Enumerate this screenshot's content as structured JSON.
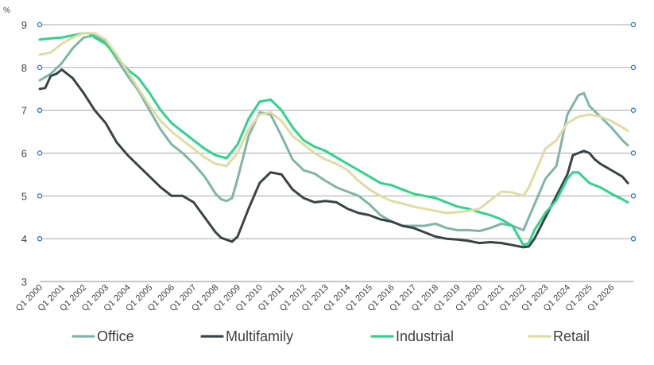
{
  "chart_data": {
    "type": "line",
    "ylabel": "%",
    "ylim": [
      3,
      9
    ],
    "yticks": [
      "3",
      "4",
      "5",
      "6",
      "7",
      "8",
      "9"
    ],
    "xlim": [
      2000,
      2027
    ],
    "xtick_labels": [
      "Q1 2000",
      "Q1 2001",
      "Q1 2002",
      "Q1 2003",
      "Q1 2004",
      "Q1 2005",
      "Q1 2006",
      "Q1 2007",
      "Q1 2008",
      "Q1 2009",
      "Q1 2010",
      "Q1 2011",
      "Q1 2012",
      "Q1 2013",
      "Q1 2014",
      "Q1 2015",
      "Q1 2016",
      "Q1 2017",
      "Q1 2018",
      "Q1 2019",
      "Q1 2020",
      "Q1 2021",
      "Q1 2022",
      "Q1 2023",
      "Q1 2024",
      "Q1 2025",
      "Q1 2026"
    ],
    "grid": true,
    "legend_position": "bottom",
    "series": [
      {
        "name": "Office",
        "color": "#7fb5a8",
        "points": [
          [
            2000,
            7.7
          ],
          [
            2000.5,
            7.85
          ],
          [
            2001,
            8.1
          ],
          [
            2001.5,
            8.45
          ],
          [
            2002,
            8.7
          ],
          [
            2002.5,
            8.75
          ],
          [
            2003,
            8.6
          ],
          [
            2003.5,
            8.2
          ],
          [
            2004,
            7.8
          ],
          [
            2004.5,
            7.45
          ],
          [
            2005,
            7.0
          ],
          [
            2005.5,
            6.55
          ],
          [
            2006,
            6.2
          ],
          [
            2006.5,
            6.0
          ],
          [
            2007,
            5.75
          ],
          [
            2007.5,
            5.45
          ],
          [
            2008,
            5.05
          ],
          [
            2008.25,
            4.92
          ],
          [
            2008.5,
            4.88
          ],
          [
            2008.75,
            4.95
          ],
          [
            2009,
            5.4
          ],
          [
            2009.5,
            6.4
          ],
          [
            2010,
            6.95
          ],
          [
            2010.5,
            6.9
          ],
          [
            2011,
            6.4
          ],
          [
            2011.5,
            5.85
          ],
          [
            2012,
            5.6
          ],
          [
            2012.5,
            5.52
          ],
          [
            2013,
            5.35
          ],
          [
            2013.5,
            5.2
          ],
          [
            2014,
            5.1
          ],
          [
            2014.5,
            5.0
          ],
          [
            2015,
            4.8
          ],
          [
            2015.5,
            4.55
          ],
          [
            2016,
            4.4
          ],
          [
            2016.5,
            4.3
          ],
          [
            2017,
            4.3
          ],
          [
            2017.5,
            4.3
          ],
          [
            2018,
            4.35
          ],
          [
            2018.5,
            4.25
          ],
          [
            2019,
            4.2
          ],
          [
            2019.5,
            4.2
          ],
          [
            2020,
            4.18
          ],
          [
            2020.5,
            4.25
          ],
          [
            2021,
            4.35
          ],
          [
            2021.5,
            4.3
          ],
          [
            2022,
            4.2
          ],
          [
            2022.5,
            4.8
          ],
          [
            2023,
            5.4
          ],
          [
            2023.5,
            5.7
          ],
          [
            2024,
            6.9
          ],
          [
            2024.5,
            7.35
          ],
          [
            2024.75,
            7.4
          ],
          [
            2025,
            7.1
          ],
          [
            2025.5,
            6.85
          ],
          [
            2026,
            6.6
          ],
          [
            2026.5,
            6.3
          ],
          [
            2026.75,
            6.18
          ]
        ]
      },
      {
        "name": "Multifamily",
        "color": "#3a4346",
        "points": [
          [
            2000,
            7.5
          ],
          [
            2000.25,
            7.52
          ],
          [
            2000.5,
            7.8
          ],
          [
            2000.75,
            7.85
          ],
          [
            2001,
            7.95
          ],
          [
            2001.5,
            7.75
          ],
          [
            2002,
            7.4
          ],
          [
            2002.5,
            7.0
          ],
          [
            2003,
            6.7
          ],
          [
            2003.5,
            6.25
          ],
          [
            2004,
            5.95
          ],
          [
            2004.5,
            5.7
          ],
          [
            2005,
            5.45
          ],
          [
            2005.5,
            5.2
          ],
          [
            2006,
            5.0
          ],
          [
            2006.5,
            5.0
          ],
          [
            2007,
            4.85
          ],
          [
            2007.5,
            4.5
          ],
          [
            2008,
            4.15
          ],
          [
            2008.25,
            4.02
          ],
          [
            2008.75,
            3.93
          ],
          [
            2009,
            4.05
          ],
          [
            2009.5,
            4.7
          ],
          [
            2010,
            5.3
          ],
          [
            2010.5,
            5.55
          ],
          [
            2011,
            5.5
          ],
          [
            2011.5,
            5.15
          ],
          [
            2012,
            4.95
          ],
          [
            2012.5,
            4.85
          ],
          [
            2013,
            4.88
          ],
          [
            2013.5,
            4.85
          ],
          [
            2014,
            4.7
          ],
          [
            2014.5,
            4.6
          ],
          [
            2015,
            4.55
          ],
          [
            2015.5,
            4.45
          ],
          [
            2016,
            4.4
          ],
          [
            2016.5,
            4.3
          ],
          [
            2017,
            4.25
          ],
          [
            2017.5,
            4.15
          ],
          [
            2018,
            4.05
          ],
          [
            2018.5,
            4.0
          ],
          [
            2019,
            3.98
          ],
          [
            2019.5,
            3.95
          ],
          [
            2020,
            3.9
          ],
          [
            2020.5,
            3.92
          ],
          [
            2021,
            3.9
          ],
          [
            2021.5,
            3.85
          ],
          [
            2022,
            3.8
          ],
          [
            2022.25,
            3.82
          ],
          [
            2022.5,
            4.0
          ],
          [
            2023,
            4.5
          ],
          [
            2023.5,
            5.0
          ],
          [
            2024,
            5.5
          ],
          [
            2024.25,
            5.95
          ],
          [
            2024.5,
            6.0
          ],
          [
            2024.75,
            6.05
          ],
          [
            2025,
            6.0
          ],
          [
            2025.25,
            5.85
          ],
          [
            2025.5,
            5.75
          ],
          [
            2026,
            5.6
          ],
          [
            2026.5,
            5.45
          ],
          [
            2026.75,
            5.3
          ]
        ]
      },
      {
        "name": "Industrial",
        "color": "#2ed48a",
        "points": [
          [
            2000,
            8.65
          ],
          [
            2000.5,
            8.68
          ],
          [
            2001,
            8.7
          ],
          [
            2001.5,
            8.75
          ],
          [
            2002,
            8.8
          ],
          [
            2002.25,
            8.8
          ],
          [
            2002.5,
            8.7
          ],
          [
            2003,
            8.55
          ],
          [
            2003.5,
            8.25
          ],
          [
            2004,
            7.95
          ],
          [
            2004.5,
            7.75
          ],
          [
            2005,
            7.4
          ],
          [
            2005.5,
            7.0
          ],
          [
            2006,
            6.7
          ],
          [
            2006.5,
            6.5
          ],
          [
            2007,
            6.3
          ],
          [
            2007.5,
            6.1
          ],
          [
            2008,
            5.95
          ],
          [
            2008.5,
            5.88
          ],
          [
            2009,
            6.2
          ],
          [
            2009.5,
            6.8
          ],
          [
            2010,
            7.2
          ],
          [
            2010.5,
            7.25
          ],
          [
            2011,
            7.0
          ],
          [
            2011.5,
            6.6
          ],
          [
            2012,
            6.3
          ],
          [
            2012.5,
            6.15
          ],
          [
            2013,
            6.05
          ],
          [
            2013.5,
            5.9
          ],
          [
            2014,
            5.75
          ],
          [
            2014.5,
            5.6
          ],
          [
            2015,
            5.45
          ],
          [
            2015.5,
            5.3
          ],
          [
            2016,
            5.25
          ],
          [
            2016.5,
            5.15
          ],
          [
            2017,
            5.05
          ],
          [
            2017.5,
            5.0
          ],
          [
            2018,
            4.95
          ],
          [
            2018.5,
            4.85
          ],
          [
            2019,
            4.75
          ],
          [
            2019.5,
            4.7
          ],
          [
            2020,
            4.62
          ],
          [
            2020.5,
            4.55
          ],
          [
            2021,
            4.45
          ],
          [
            2021.5,
            4.3
          ],
          [
            2022,
            3.85
          ],
          [
            2022.25,
            3.9
          ],
          [
            2022.5,
            4.2
          ],
          [
            2023,
            4.6
          ],
          [
            2023.5,
            4.9
          ],
          [
            2024,
            5.4
          ],
          [
            2024.25,
            5.55
          ],
          [
            2024.5,
            5.55
          ],
          [
            2025,
            5.3
          ],
          [
            2025.5,
            5.2
          ],
          [
            2026,
            5.05
          ],
          [
            2026.5,
            4.92
          ],
          [
            2026.75,
            4.85
          ]
        ]
      },
      {
        "name": "Retail",
        "color": "#e0dca4",
        "points": [
          [
            2000,
            8.3
          ],
          [
            2000.5,
            8.35
          ],
          [
            2001,
            8.55
          ],
          [
            2001.5,
            8.7
          ],
          [
            2002,
            8.8
          ],
          [
            2002.5,
            8.8
          ],
          [
            2003,
            8.65
          ],
          [
            2003.5,
            8.3
          ],
          [
            2004,
            7.9
          ],
          [
            2004.5,
            7.5
          ],
          [
            2005,
            7.1
          ],
          [
            2005.5,
            6.75
          ],
          [
            2006,
            6.5
          ],
          [
            2006.5,
            6.3
          ],
          [
            2007,
            6.1
          ],
          [
            2007.5,
            5.9
          ],
          [
            2008,
            5.75
          ],
          [
            2008.5,
            5.7
          ],
          [
            2009,
            6.0
          ],
          [
            2009.5,
            6.55
          ],
          [
            2010,
            6.9
          ],
          [
            2010.5,
            6.95
          ],
          [
            2011,
            6.75
          ],
          [
            2011.5,
            6.4
          ],
          [
            2012,
            6.2
          ],
          [
            2012.5,
            6.0
          ],
          [
            2013,
            5.85
          ],
          [
            2013.5,
            5.75
          ],
          [
            2014,
            5.6
          ],
          [
            2014.5,
            5.35
          ],
          [
            2015,
            5.15
          ],
          [
            2015.5,
            5.0
          ],
          [
            2016,
            4.88
          ],
          [
            2016.5,
            4.82
          ],
          [
            2017,
            4.75
          ],
          [
            2017.5,
            4.7
          ],
          [
            2018,
            4.65
          ],
          [
            2018.5,
            4.6
          ],
          [
            2019,
            4.62
          ],
          [
            2019.5,
            4.65
          ],
          [
            2020,
            4.7
          ],
          [
            2020.5,
            4.9
          ],
          [
            2021,
            5.1
          ],
          [
            2021.5,
            5.08
          ],
          [
            2022,
            5.0
          ],
          [
            2022.25,
            5.2
          ],
          [
            2022.5,
            5.5
          ],
          [
            2023,
            6.1
          ],
          [
            2023.5,
            6.3
          ],
          [
            2024,
            6.7
          ],
          [
            2024.5,
            6.85
          ],
          [
            2025,
            6.9
          ],
          [
            2025.5,
            6.85
          ],
          [
            2026,
            6.75
          ],
          [
            2026.5,
            6.6
          ],
          [
            2026.75,
            6.52
          ]
        ]
      }
    ]
  }
}
